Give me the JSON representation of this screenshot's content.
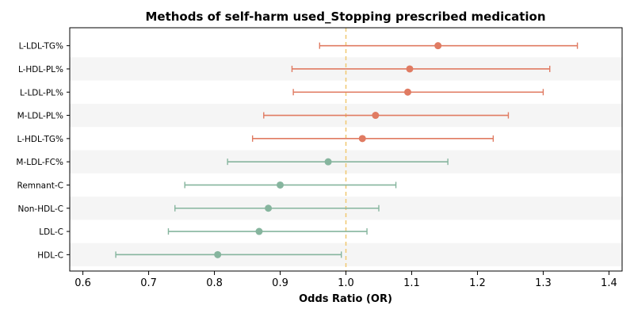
{
  "chart_data": {
    "type": "forest",
    "title": "Methods of self-harm used_Stopping prescribed medication",
    "xlabel": "Odds Ratio (OR)",
    "xlim": [
      0.58,
      1.42
    ],
    "xticks": [
      "0.6",
      "0.7",
      "0.8",
      "0.9",
      "1.0",
      "1.1",
      "1.2",
      "1.3",
      "1.4"
    ],
    "reference_line": 1.0,
    "band_shading": true,
    "colors": {
      "risk": "#e07b62",
      "protective": "#86b59e",
      "reference": "#f0c870",
      "band": "#f5f5f5"
    },
    "rows": [
      {
        "label": "L-LDL-TG%",
        "or": 1.14,
        "lower": 0.96,
        "upper": 1.352,
        "group": "risk"
      },
      {
        "label": "L-HDL-PL%",
        "or": 1.097,
        "lower": 0.918,
        "upper": 1.31,
        "group": "risk"
      },
      {
        "label": "L-LDL-PL%",
        "or": 1.094,
        "lower": 0.92,
        "upper": 1.3,
        "group": "risk"
      },
      {
        "label": "M-LDL-PL%",
        "or": 1.045,
        "lower": 0.875,
        "upper": 1.247,
        "group": "risk"
      },
      {
        "label": "L-HDL-TG%",
        "or": 1.025,
        "lower": 0.858,
        "upper": 1.224,
        "group": "risk"
      },
      {
        "label": "M-LDL-FC%",
        "or": 0.973,
        "lower": 0.82,
        "upper": 1.155,
        "group": "protective"
      },
      {
        "label": "Remnant-C",
        "or": 0.9,
        "lower": 0.755,
        "upper": 1.076,
        "group": "protective"
      },
      {
        "label": "Non-HDL-C",
        "or": 0.882,
        "lower": 0.74,
        "upper": 1.05,
        "group": "protective"
      },
      {
        "label": "LDL-C",
        "or": 0.868,
        "lower": 0.73,
        "upper": 1.032,
        "group": "protective"
      },
      {
        "label": "HDL-C",
        "or": 0.805,
        "lower": 0.65,
        "upper": 0.993,
        "group": "protective"
      }
    ]
  }
}
